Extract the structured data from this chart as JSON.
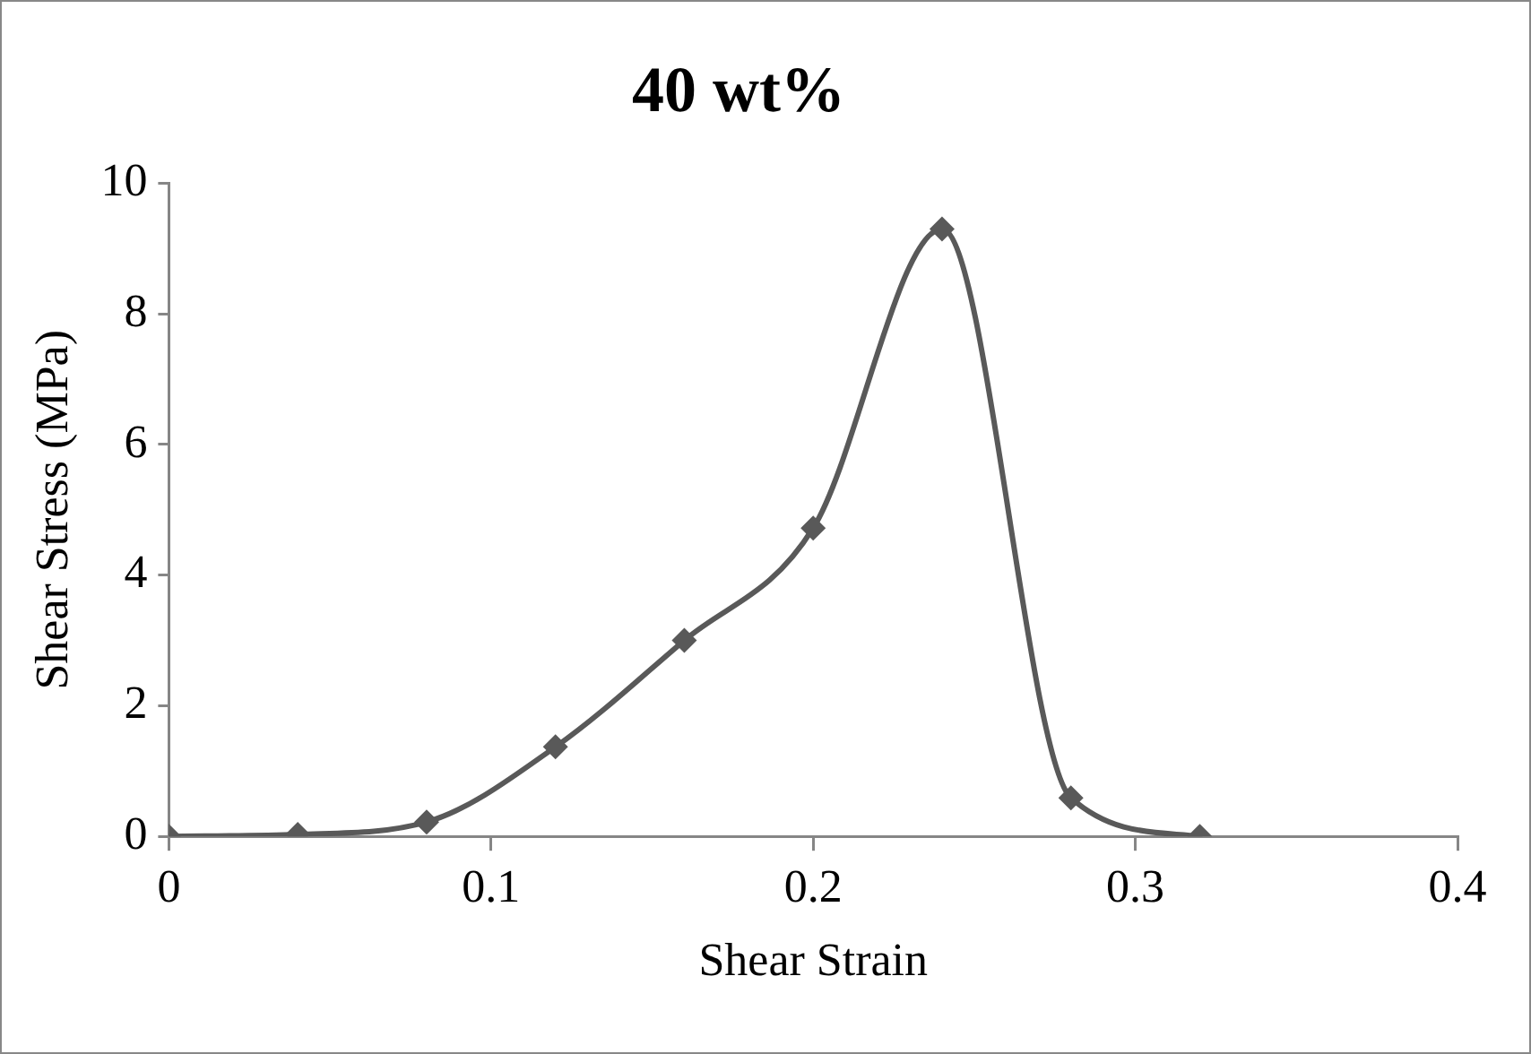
{
  "chart_data": {
    "type": "line",
    "title": "40 wt%",
    "xlabel": "Shear Strain",
    "ylabel": "Shear Stress (MPa)",
    "x": [
      0,
      0.04,
      0.08,
      0.12,
      0.16,
      0.2,
      0.24,
      0.28,
      0.32
    ],
    "series": [
      {
        "color": "#595959",
        "values": [
          0,
          0.03,
          0.22,
          1.37,
          3.0,
          4.72,
          9.3,
          0.59,
          0
        ]
      }
    ],
    "xlim": [
      0,
      0.4
    ],
    "xticks": [
      0,
      0.1,
      0.2,
      0.3,
      0.4
    ],
    "ylim": [
      0,
      10
    ],
    "yticks": [
      0,
      2,
      4,
      6,
      8,
      10
    ],
    "marker": "diamond",
    "line_style": "solid",
    "legend": false
  }
}
